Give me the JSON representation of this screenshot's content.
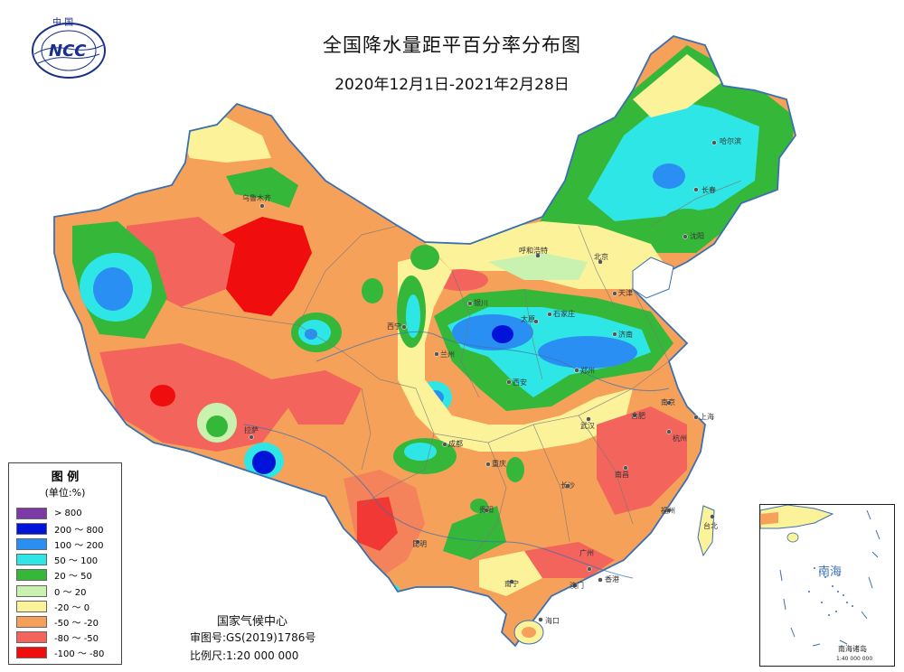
{
  "header": {
    "logo_text_top": "中 国",
    "logo_text": "NCC",
    "title": "全国降水量距平百分率分布图",
    "subtitle": "2020年12月1日-2021年2月28日"
  },
  "legend": {
    "title": "图  例",
    "unit": "(单位:%)",
    "items": [
      {
        "label": "> 800",
        "color": "#7b3aa6"
      },
      {
        "label": "200 ～ 800",
        "color": "#0013d9"
      },
      {
        "label": "100 ～ 200",
        "color": "#2a8ff2"
      },
      {
        "label": "50 ～ 100",
        "color": "#2fe6e6"
      },
      {
        "label": "20 ～ 50",
        "color": "#35b83a"
      },
      {
        "label": "0 ～ 20",
        "color": "#c9f2b0"
      },
      {
        "label": "-20 ～ 0",
        "color": "#fbf29a"
      },
      {
        "label": "-50 ～ -20",
        "color": "#f6a15a"
      },
      {
        "label": "-80 ～ -50",
        "color": "#f2645c"
      },
      {
        "label": "-100 ～ -80",
        "color": "#f00d0d"
      }
    ]
  },
  "footer": {
    "agency": "国家气候中心",
    "approval": "审图号:GS(2019)1786号",
    "scale": "比例尺:1:20 000 000"
  },
  "inset": {
    "sea_label": "南海",
    "islands_label": "南海诸岛",
    "scale": "1:40 000 000"
  },
  "cities": [
    {
      "name": "乌鲁木齐",
      "id": "urumqi"
    },
    {
      "name": "哈尔滨",
      "id": "harbin"
    },
    {
      "name": "长春",
      "id": "changchun"
    },
    {
      "name": "沈阳",
      "id": "shenyang"
    },
    {
      "name": "呼和浩特",
      "id": "hohhot"
    },
    {
      "name": "北京",
      "id": "beijing"
    },
    {
      "name": "天津",
      "id": "tianjin"
    },
    {
      "name": "石家庄",
      "id": "shijiazhuang"
    },
    {
      "name": "太原",
      "id": "taiyuan"
    },
    {
      "name": "济南",
      "id": "jinan"
    },
    {
      "name": "银川",
      "id": "yinchuan"
    },
    {
      "name": "西宁",
      "id": "xining"
    },
    {
      "name": "兰州",
      "id": "lanzhou"
    },
    {
      "name": "西安",
      "id": "xian"
    },
    {
      "name": "郑州",
      "id": "zhengzhou"
    },
    {
      "name": "拉萨",
      "id": "lhasa"
    },
    {
      "name": "成都",
      "id": "chengdu"
    },
    {
      "name": "重庆",
      "id": "chongqing"
    },
    {
      "name": "武汉",
      "id": "wuhan"
    },
    {
      "name": "合肥",
      "id": "hefei"
    },
    {
      "name": "南京",
      "id": "nanjing"
    },
    {
      "name": "上海",
      "id": "shanghai"
    },
    {
      "name": "杭州",
      "id": "hangzhou"
    },
    {
      "name": "南昌",
      "id": "nanchang"
    },
    {
      "name": "长沙",
      "id": "changsha"
    },
    {
      "name": "贵阳",
      "id": "guiyang"
    },
    {
      "name": "昆明",
      "id": "kunming"
    },
    {
      "name": "福州",
      "id": "fuzhou"
    },
    {
      "name": "台北",
      "id": "taipei"
    },
    {
      "name": "广州",
      "id": "guangzhou"
    },
    {
      "name": "南宁",
      "id": "nanning"
    },
    {
      "name": "香港",
      "id": "hongkong"
    },
    {
      "name": "澳门",
      "id": "macau"
    },
    {
      "name": "海口",
      "id": "haikou"
    }
  ],
  "colors": {
    "background": "#ffffff",
    "border": "#3b6fb0",
    "water": "#ffffff"
  }
}
